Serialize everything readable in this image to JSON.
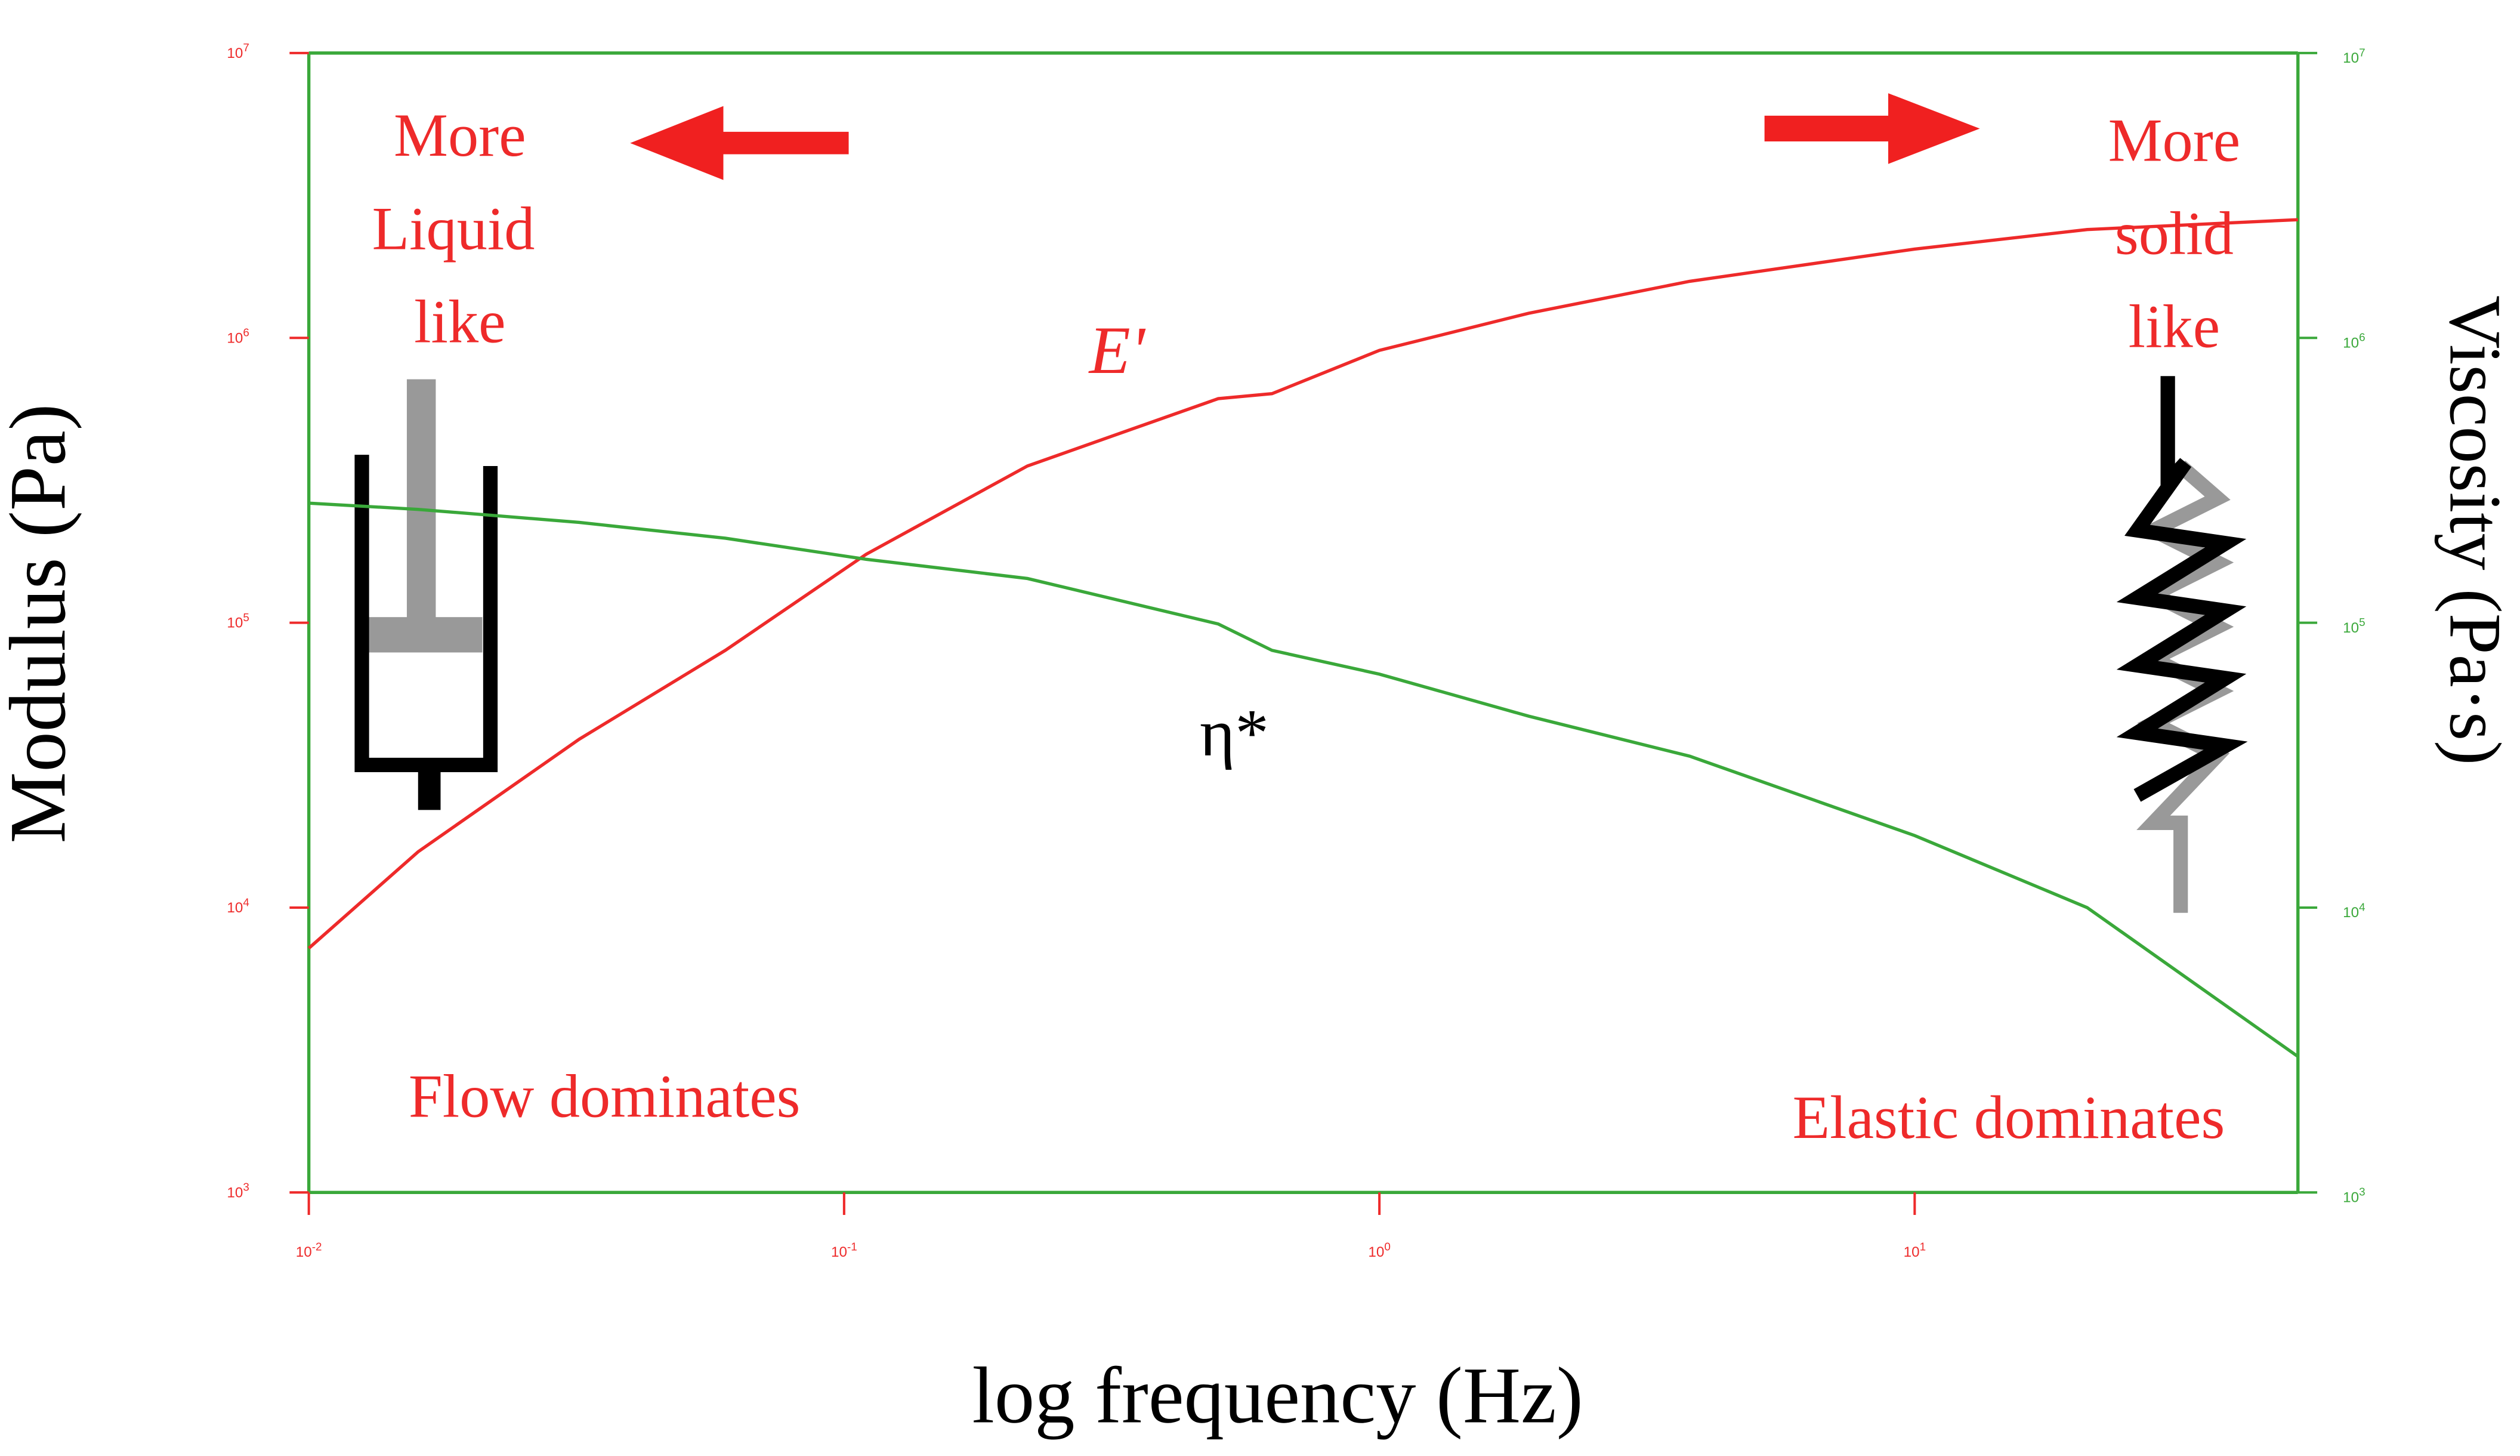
{
  "chart_data": {
    "type": "line",
    "xlabel": "log frequency (Hz)",
    "ylabel": "Modulus (Pa)",
    "y2label": "Viscosity (Pa·s)",
    "xscale": "log",
    "yscale": "log",
    "y2scale": "log",
    "xlim": [
      0.01,
      52
    ],
    "ylim": [
      1000,
      10000000
    ],
    "y2lim": [
      1000,
      10000000
    ],
    "xticks": [
      {
        "value": 0.01,
        "label": "10",
        "exponent": "-2"
      },
      {
        "value": 0.1,
        "label": "10",
        "exponent": "-1"
      },
      {
        "value": 1,
        "label": "10",
        "exponent": "0"
      },
      {
        "value": 10,
        "label": "10",
        "exponent": "1"
      }
    ],
    "yticks": [
      {
        "value": 1000,
        "label": "10",
        "exponent": "3"
      },
      {
        "value": 10000,
        "label": "10",
        "exponent": "4"
      },
      {
        "value": 100000,
        "label": "10",
        "exponent": "5"
      },
      {
        "value": 1000000,
        "label": "10",
        "exponent": "6"
      },
      {
        "value": 10000000,
        "label": "10",
        "exponent": "7"
      }
    ],
    "y2ticks": [
      {
        "value": 1000,
        "label": "10",
        "exponent": "3"
      },
      {
        "value": 10000,
        "label": "10",
        "exponent": "4"
      },
      {
        "value": 100000,
        "label": "10",
        "exponent": "5"
      },
      {
        "value": 1000000,
        "label": "10",
        "exponent": "6"
      },
      {
        "value": 10000000,
        "label": "10",
        "exponent": "7"
      }
    ],
    "ycolor": "#ee2a2a",
    "y2color": "#3aa83a",
    "x": [
      0.01,
      0.016,
      0.032,
      0.06,
      0.11,
      0.22,
      0.5,
      0.63,
      1,
      1.9,
      3.8,
      10,
      21,
      52
    ],
    "series": [
      {
        "name": "E'",
        "color": "#ee2a2a",
        "axis": "y",
        "values": [
          7200,
          15700,
          39000,
          80000,
          174000,
          355000,
          612000,
          637000,
          904000,
          1220000,
          1580000,
          2050000,
          2400000,
          2600000
        ]
      },
      {
        "name": "η*",
        "color": "#3aa83a",
        "axis": "y2",
        "values": [
          263000,
          250000,
          225000,
          198000,
          167000,
          143000,
          99000,
          80000,
          66000,
          47000,
          34000,
          17900,
          10000,
          3000
        ]
      }
    ],
    "annotations": [
      {
        "lines": [
          "More",
          "Liquid",
          "like"
        ]
      },
      {
        "lines": [
          "More",
          "solid",
          "like"
        ]
      },
      {
        "lines": [
          "Flow dominates"
        ]
      },
      {
        "lines": [
          "Elastic dominates"
        ]
      }
    ]
  }
}
